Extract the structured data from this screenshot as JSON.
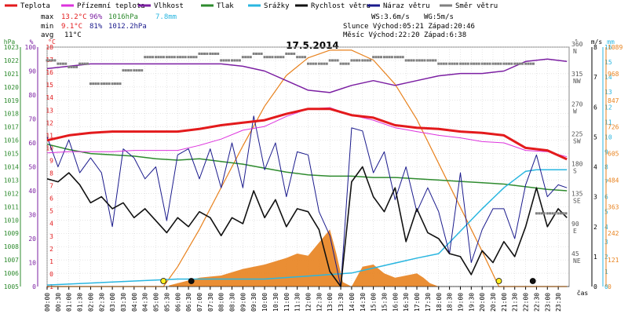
{
  "chart_data": {
    "type": "line",
    "title": "17.5.2014",
    "xlabel": "čas",
    "legend_placement": "top",
    "grid": true,
    "colors": {
      "teplota": "#e31a1c",
      "prizemni": "#dd33dd",
      "vlhkost": "#7b1fa2",
      "tlak": "#2e8b2e",
      "srazky": "#29b6e0",
      "rychlost": "#111111",
      "naraz": "#1a1a8c",
      "smer": "#808080",
      "slunce": "#e8821e",
      "frame_bg": "#ffffff",
      "grid": "#cccccc"
    },
    "legend": [
      {
        "key": "teplota",
        "label": "Teplota"
      },
      {
        "key": "prizemni",
        "label": "Přízemní teplota"
      },
      {
        "key": "vlhkost",
        "label": "Vlhkost"
      },
      {
        "key": "tlak",
        "label": "Tlak"
      },
      {
        "key": "srazky",
        "label": "Srážky"
      },
      {
        "key": "rychlost",
        "label": "Rychlost větru"
      },
      {
        "key": "naraz",
        "label": "Náraz větru"
      },
      {
        "key": "smer",
        "label": "Směr větru"
      }
    ],
    "stats": {
      "max": {
        "label": "max",
        "t": "13.2°C",
        "h": "96%",
        "p": "1016hPa",
        "r": "7.8mm"
      },
      "min": {
        "label": "min",
        "t": "9.1°C",
        "h": "81%",
        "p": "1012.2hPa"
      },
      "avg": {
        "label": "avg",
        "t": "11°C"
      },
      "ws": "WS:3.6m/s",
      "wg": "WG:5m/s",
      "slunce": "Slunce Východ:05:21  Západ:20:46",
      "mesic": "Měsíc  Východ:22:20  Západ:6:38"
    },
    "axes": {
      "hpa": {
        "title": "hPa",
        "ticks": [
          "1023",
          "1022",
          "1021",
          "1020",
          "1019",
          "1018",
          "1017",
          "1016",
          "1015",
          "1014",
          "1013",
          "1012",
          "1011",
          "1010",
          "1009",
          "1008",
          "1007",
          "1006",
          "1005"
        ],
        "range": [
          1005,
          1023
        ]
      },
      "pct": {
        "title": "%",
        "ticks": [
          "100",
          "90",
          "80",
          "70",
          "60",
          "50",
          "40",
          "30",
          "20",
          "10",
          "0"
        ],
        "range": [
          0,
          100
        ]
      },
      "degc": {
        "title": "°C",
        "ticks": [
          "18",
          "17",
          "16",
          "15",
          "14",
          "13",
          "12",
          "11",
          "10",
          "9",
          "8",
          "7",
          "6",
          "5",
          "4",
          "3",
          "2",
          "1",
          "0",
          "-1"
        ],
        "range": [
          -1,
          18
        ]
      },
      "deg": {
        "title": "°",
        "ticks": [
          {
            "v": "360",
            "d": "N"
          },
          {
            "v": "315",
            "d": "NW"
          },
          {
            "v": "270",
            "d": "W"
          },
          {
            "v": "225",
            "d": "SW"
          },
          {
            "v": "180",
            "d": "S"
          },
          {
            "v": "135",
            "d": "SE"
          },
          {
            "v": "90",
            "d": "E"
          },
          {
            "v": "45",
            "d": "NE"
          }
        ],
        "range": [
          0,
          360
        ]
      },
      "ms": {
        "title": "m/s",
        "ticks": [
          "8",
          "7",
          "6",
          "5",
          "4",
          "3",
          "2",
          "1",
          "0"
        ],
        "range": [
          0,
          8
        ]
      },
      "mm": {
        "title": "mm",
        "ticks": [
          "16",
          "15",
          "14",
          "13",
          "12",
          "11",
          "10",
          "9",
          "8",
          "7",
          "6",
          "5",
          "4",
          "3",
          "2",
          "1",
          "0"
        ],
        "range": [
          0,
          16
        ]
      },
      "wm2": {
        "title": "W/m²",
        "ticks": [
          "1089",
          "968",
          "847",
          "726",
          "605",
          "484",
          "363",
          "242",
          "121",
          "0"
        ],
        "range": [
          0,
          1089
        ]
      },
      "x_ticks": [
        "00:00",
        "00:30",
        "01:00",
        "01:30",
        "02:00",
        "02:30",
        "03:00",
        "03:30",
        "04:00",
        "04:30",
        "05:00",
        "05:30",
        "06:00",
        "06:30",
        "07:00",
        "07:30",
        "08:00",
        "08:30",
        "09:00",
        "09:30",
        "10:00",
        "10:30",
        "11:00",
        "11:30",
        "12:00",
        "12:30",
        "13:00",
        "13:30",
        "14:00",
        "14:30",
        "15:00",
        "15:30",
        "16:00",
        "16:30",
        "17:00",
        "17:30",
        "18:00",
        "18:30",
        "19:00",
        "19:30",
        "20:00",
        "20:30",
        "21:00",
        "21:30",
        "22:00",
        "22:30",
        "23:00",
        "23:30"
      ]
    },
    "series": [
      {
        "key": "teplota",
        "unit": "°C",
        "x": [
          0,
          1,
          2,
          3,
          4,
          5,
          6,
          7,
          8,
          9,
          10,
          11,
          12,
          13,
          14,
          15,
          16,
          17,
          18,
          19,
          20,
          21,
          22,
          23,
          23.9
        ],
        "y": [
          10.6,
          11,
          11.2,
          11.3,
          11.3,
          11.3,
          11.3,
          11.5,
          11.8,
          12,
          12.2,
          12.7,
          13.1,
          13.1,
          12.6,
          12.4,
          11.8,
          11.6,
          11.5,
          11.3,
          11.2,
          11,
          10,
          9.8,
          9.1
        ]
      },
      {
        "key": "prizemni",
        "unit": "°C",
        "x": [
          0,
          1,
          2,
          3,
          4,
          5,
          6,
          7,
          8,
          9,
          10,
          11,
          12,
          13,
          14,
          15,
          16,
          17,
          18,
          19,
          20,
          21,
          22,
          23,
          23.9
        ],
        "y": [
          9.6,
          9.7,
          9.7,
          9.7,
          9.8,
          9.8,
          9.8,
          10.2,
          10.7,
          11.4,
          11.7,
          12.5,
          13.1,
          13.2,
          12.6,
          12.2,
          11.6,
          11.3,
          11,
          10.8,
          10.5,
          10.4,
          9.8,
          9.7,
          9.3
        ]
      },
      {
        "key": "vlhkost",
        "unit": "%",
        "x": [
          0,
          1,
          2,
          3,
          4,
          5,
          6,
          7,
          8,
          9,
          10,
          11,
          12,
          13,
          14,
          15,
          16,
          17,
          18,
          19,
          20,
          21,
          22,
          23,
          23.9
        ],
        "y": [
          91,
          92,
          93,
          93,
          93,
          93,
          93,
          93,
          93,
          92,
          90,
          86,
          82,
          81,
          84,
          86,
          84,
          86,
          88,
          89,
          89,
          90,
          94,
          95,
          94
        ]
      },
      {
        "key": "tlak",
        "unit": "hPa",
        "x": [
          0,
          1,
          2,
          3,
          4,
          5,
          6,
          7,
          8,
          9,
          10,
          11,
          12,
          13,
          14,
          15,
          16,
          17,
          18,
          19,
          20,
          21,
          22,
          23,
          23.9
        ],
        "y": [
          1015.7,
          1015.3,
          1015,
          1014.9,
          1014.8,
          1014.6,
          1014.5,
          1014.6,
          1014.4,
          1014.2,
          1013.9,
          1013.6,
          1013.4,
          1013.3,
          1013.3,
          1013.2,
          1013.2,
          1013.1,
          1013,
          1012.9,
          1012.8,
          1012.7,
          1012.5,
          1012.3,
          1012.2
        ]
      },
      {
        "key": "srazky",
        "unit": "mm",
        "x": [
          0,
          6,
          10,
          14,
          17,
          18,
          19,
          20,
          21,
          22,
          22.5,
          23,
          23.9
        ],
        "y": [
          0.1,
          0.5,
          0.5,
          0.9,
          1.9,
          2.2,
          3.7,
          5.2,
          6.6,
          7.7,
          7.8,
          7.8,
          7.8
        ]
      },
      {
        "key": "rychlost",
        "unit": "m/s",
        "x": [
          0,
          0.5,
          1,
          1.5,
          2,
          2.5,
          3,
          3.5,
          4,
          4.5,
          5,
          5.5,
          6,
          6.5,
          7,
          7.5,
          8,
          8.5,
          9,
          9.5,
          10,
          10.5,
          11,
          11.5,
          12,
          12.5,
          13,
          13.5,
          14,
          14.5,
          15,
          15.5,
          16,
          16.5,
          17,
          17.5,
          18,
          18.5,
          19,
          19.5,
          20,
          20.5,
          21,
          21.5,
          22,
          22.5,
          23,
          23.5,
          23.9
        ],
        "y": [
          3.6,
          3.5,
          3.8,
          3.4,
          2.8,
          3.0,
          2.6,
          2.8,
          2.3,
          2.6,
          2.2,
          1.8,
          2.3,
          2.0,
          2.5,
          2.3,
          1.7,
          2.3,
          2.1,
          3.2,
          2.3,
          2.9,
          2.0,
          2.6,
          2.5,
          1.9,
          0.5,
          0,
          3.5,
          4.0,
          3.0,
          2.5,
          3.3,
          1.5,
          2.6,
          1.8,
          1.6,
          1.1,
          1.0,
          0.4,
          1.2,
          0.8,
          1.5,
          1.0,
          2.0,
          3.3,
          2.0,
          2.6,
          2.3
        ]
      },
      {
        "key": "naraz",
        "unit": "m/s",
        "x": [
          0,
          0.5,
          1,
          1.5,
          2,
          2.5,
          3,
          3.5,
          4,
          4.5,
          5,
          5.5,
          6,
          6.5,
          7,
          7.5,
          8,
          8.5,
          9,
          9.5,
          10,
          10.5,
          11,
          11.5,
          12,
          12.5,
          13,
          13.5,
          14,
          14.5,
          15,
          15.5,
          16,
          16.5,
          17,
          17.5,
          18,
          18.5,
          19,
          19.5,
          20,
          20.5,
          21,
          21.5,
          22,
          22.5,
          23,
          23.5,
          23.9
        ],
        "y": [
          5.0,
          4.0,
          4.9,
          3.8,
          4.3,
          3.8,
          2.0,
          4.6,
          4.3,
          3.6,
          4.0,
          2.2,
          4.4,
          4.6,
          3.6,
          4.6,
          3.3,
          4.8,
          3.3,
          5.7,
          3.9,
          4.8,
          3.0,
          4.5,
          4.4,
          2.5,
          1.7,
          0,
          5.3,
          5.2,
          3.8,
          4.5,
          2.9,
          4.0,
          2.5,
          3.3,
          2.5,
          1.1,
          3.8,
          0.8,
          1.9,
          2.6,
          2.6,
          1.6,
          3.4,
          4.4,
          3.0,
          3.4,
          3.3
        ]
      },
      {
        "key": "smer",
        "unit": "°",
        "x": [
          0,
          0.5,
          1,
          1.5,
          2,
          2.5,
          3,
          3.5,
          4,
          4.5,
          5,
          5.5,
          6,
          6.5,
          7,
          7.5,
          8,
          8.5,
          9,
          9.5,
          10,
          10.5,
          11,
          11.5,
          12,
          12.5,
          13,
          13.5,
          14,
          14.5,
          15,
          15.5,
          16,
          16.5,
          17,
          17.5,
          18,
          18.5,
          19,
          19.5,
          20,
          20.5,
          21,
          21.5,
          22,
          22.5,
          23,
          23.5
        ],
        "y": [
          340,
          335,
          330,
          335,
          305,
          305,
          305,
          325,
          325,
          345,
          345,
          345,
          345,
          345,
          350,
          350,
          340,
          340,
          345,
          350,
          345,
          345,
          350,
          345,
          335,
          335,
          340,
          335,
          340,
          340,
          345,
          345,
          345,
          340,
          340,
          340,
          335,
          335,
          335,
          335,
          335,
          335,
          335,
          335,
          335,
          110,
          110,
          110
        ]
      },
      {
        "key": "slunce",
        "unit": "W/m²",
        "x": [
          0,
          5.35,
          6,
          7,
          8,
          9,
          10,
          11,
          12,
          13,
          14,
          15,
          16,
          17,
          18,
          19,
          20,
          20.77,
          23.9
        ],
        "y": [
          0,
          0,
          90,
          260,
          450,
          640,
          820,
          960,
          1040,
          1075,
          1075,
          1030,
          920,
          760,
          560,
          360,
          160,
          0,
          0
        ]
      },
      {
        "key": "slunce_area",
        "unit": "W/m²",
        "x": [
          5.6,
          7,
          8,
          9,
          10,
          11,
          11.5,
          12,
          12.5,
          13,
          13.3,
          13.6,
          14,
          14.5,
          15,
          15.5,
          16,
          16.5,
          17,
          17.3,
          17.6,
          18
        ],
        "y": [
          5,
          40,
          50,
          80,
          100,
          130,
          150,
          140,
          200,
          260,
          150,
          20,
          0,
          90,
          100,
          60,
          40,
          50,
          60,
          40,
          15,
          0
        ]
      }
    ],
    "markers": [
      {
        "type": "sunrise",
        "x": 5.35
      },
      {
        "type": "moonset",
        "x": 6.63
      },
      {
        "type": "sunset",
        "x": 20.77
      },
      {
        "type": "moonrise",
        "x": 22.33
      }
    ]
  }
}
